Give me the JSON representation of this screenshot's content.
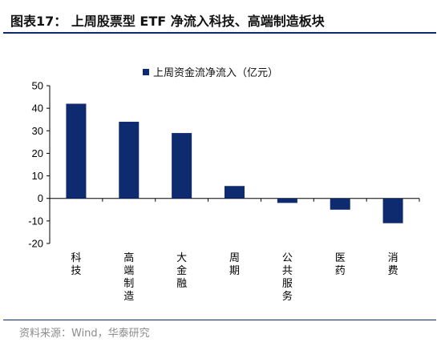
{
  "header": {
    "title": "图表17：  上周股票型 ETF 净流入科技、高端制造板块"
  },
  "chart_data": {
    "type": "bar",
    "title": "",
    "xlabel": "",
    "ylabel": "",
    "categories": [
      "科技",
      "高端制造",
      "大金融",
      "周期",
      "公共服务",
      "医药",
      "消费"
    ],
    "series": [
      {
        "name": "上周资金流净流入（亿元）",
        "values": [
          42,
          34,
          29,
          5.5,
          -2,
          -5,
          -11
        ],
        "color": "#0d2b6e"
      }
    ],
    "ylim": [
      -20,
      50
    ],
    "yticks": [
      "-20",
      "-10",
      "0",
      "10",
      "20",
      "30",
      "40",
      "50"
    ],
    "grid": false,
    "legend_position": "top"
  },
  "footer": {
    "source": "资料来源：Wind，华泰研究"
  }
}
